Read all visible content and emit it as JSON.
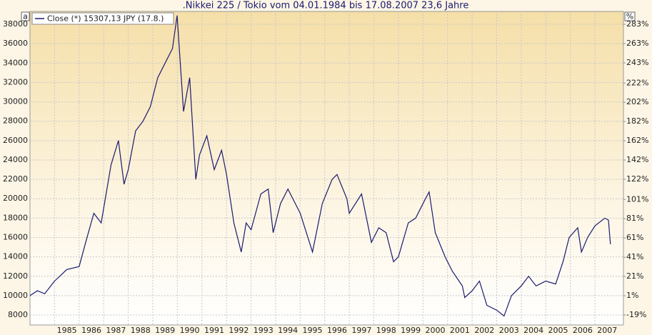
{
  "chart_data": {
    "type": "line",
    "title": ".Nikkei 225 / Tokio vom 04.01.1984 bis 17.08.2007 23,6 Jahre",
    "corner_left": "a",
    "corner_right": "%",
    "x": [
      1984.0,
      1984.3,
      1984.6,
      1985.0,
      1985.5,
      1986.0,
      1986.3,
      1986.6,
      1986.9,
      1987.3,
      1987.6,
      1987.83,
      1988.0,
      1988.3,
      1988.6,
      1988.9,
      1989.2,
      1989.5,
      1989.8,
      1989.99,
      1990.25,
      1990.5,
      1990.75,
      1990.9,
      1991.2,
      1991.5,
      1991.8,
      1992.0,
      1992.3,
      1992.6,
      1992.8,
      1993.0,
      1993.4,
      1993.7,
      1993.9,
      1994.2,
      1994.5,
      1994.8,
      1995.0,
      1995.5,
      1995.9,
      1996.3,
      1996.5,
      1996.9,
      1997.0,
      1997.5,
      1997.9,
      1998.2,
      1998.5,
      1998.8,
      1999.0,
      1999.4,
      1999.7,
      2000.1,
      2000.25,
      2000.5,
      2000.9,
      2001.2,
      2001.6,
      2001.7,
      2002.0,
      2002.3,
      2002.6,
      2003.0,
      2003.3,
      2003.6,
      2004.0,
      2004.3,
      2004.6,
      2005.0,
      2005.4,
      2005.7,
      2005.95,
      2006.3,
      2006.45,
      2006.7,
      2007.0,
      2007.4,
      2007.55,
      2007.63
    ],
    "series": [
      {
        "name": "Close (*) 15307,13 JPY (17.8.)",
        "color": "#1a1a70",
        "values": [
          10000,
          10500,
          10200,
          11500,
          12700,
          13000,
          15800,
          18500,
          17500,
          23500,
          26000,
          21500,
          23000,
          27000,
          28000,
          29500,
          32500,
          34000,
          35500,
          38900,
          29000,
          32500,
          22000,
          24500,
          26500,
          23000,
          25000,
          22500,
          17500,
          14500,
          17500,
          16800,
          20500,
          21000,
          16500,
          19500,
          21000,
          19500,
          18500,
          14500,
          19500,
          22000,
          22500,
          20000,
          18500,
          20500,
          15500,
          17000,
          16500,
          13500,
          14000,
          17500,
          18000,
          20000,
          20700,
          16500,
          14000,
          12500,
          11000,
          9800,
          10500,
          11500,
          9000,
          8500,
          7900,
          10000,
          11000,
          12000,
          11000,
          11500,
          11200,
          13500,
          16000,
          17000,
          14500,
          16000,
          17200,
          18000,
          17800,
          15307
        ]
      }
    ],
    "xlim": [
      1984,
      2008.16
    ],
    "xticks": [
      {
        "value": 1985,
        "label": "1985"
      },
      {
        "value": 1986,
        "label": "1986"
      },
      {
        "value": 1987,
        "label": "1987"
      },
      {
        "value": 1988,
        "label": "1988"
      },
      {
        "value": 1989,
        "label": "1989"
      },
      {
        "value": 1990,
        "label": "1990"
      },
      {
        "value": 1991,
        "label": "1991"
      },
      {
        "value": 1992,
        "label": "1992"
      },
      {
        "value": 1993,
        "label": "1993"
      },
      {
        "value": 1994,
        "label": "1994"
      },
      {
        "value": 1995,
        "label": "1995"
      },
      {
        "value": 1996,
        "label": "1996"
      },
      {
        "value": 1997,
        "label": "1997"
      },
      {
        "value": 1998,
        "label": "1998"
      },
      {
        "value": 1999,
        "label": "1999"
      },
      {
        "value": 2000,
        "label": "2000"
      },
      {
        "value": 2001,
        "label": "2001"
      },
      {
        "value": 2002,
        "label": "2002"
      },
      {
        "value": 2003,
        "label": "2003"
      },
      {
        "value": 2004,
        "label": "2004"
      },
      {
        "value": 2005,
        "label": "2005"
      },
      {
        "value": 2006,
        "label": "2006"
      },
      {
        "value": 2007,
        "label": "2007"
      }
    ],
    "ylim": [
      6970,
      39330
    ],
    "yticks": [
      8000,
      10000,
      12000,
      14000,
      16000,
      18000,
      20000,
      22000,
      24000,
      26000,
      28000,
      30000,
      32000,
      34000,
      36000,
      38000
    ],
    "y2lim": [
      -29.4,
      296.4
    ],
    "y2ticks": [
      {
        "value": -19,
        "label": "-19%"
      },
      {
        "value": 1,
        "label": "1%"
      },
      {
        "value": 21,
        "label": "21%"
      },
      {
        "value": 41,
        "label": "41%"
      },
      {
        "value": 61,
        "label": "61%"
      },
      {
        "value": 81,
        "label": "81%"
      },
      {
        "value": 101,
        "label": "101%"
      },
      {
        "value": 122,
        "label": "122%"
      },
      {
        "value": 142,
        "label": "142%"
      },
      {
        "value": 162,
        "label": "162%"
      },
      {
        "value": 182,
        "label": "182%"
      },
      {
        "value": 202,
        "label": "202%"
      },
      {
        "value": 222,
        "label": "222%"
      },
      {
        "value": 243,
        "label": "243%"
      },
      {
        "value": 263,
        "label": "263%"
      },
      {
        "value": 283,
        "label": "283%"
      }
    ],
    "grid": true
  }
}
